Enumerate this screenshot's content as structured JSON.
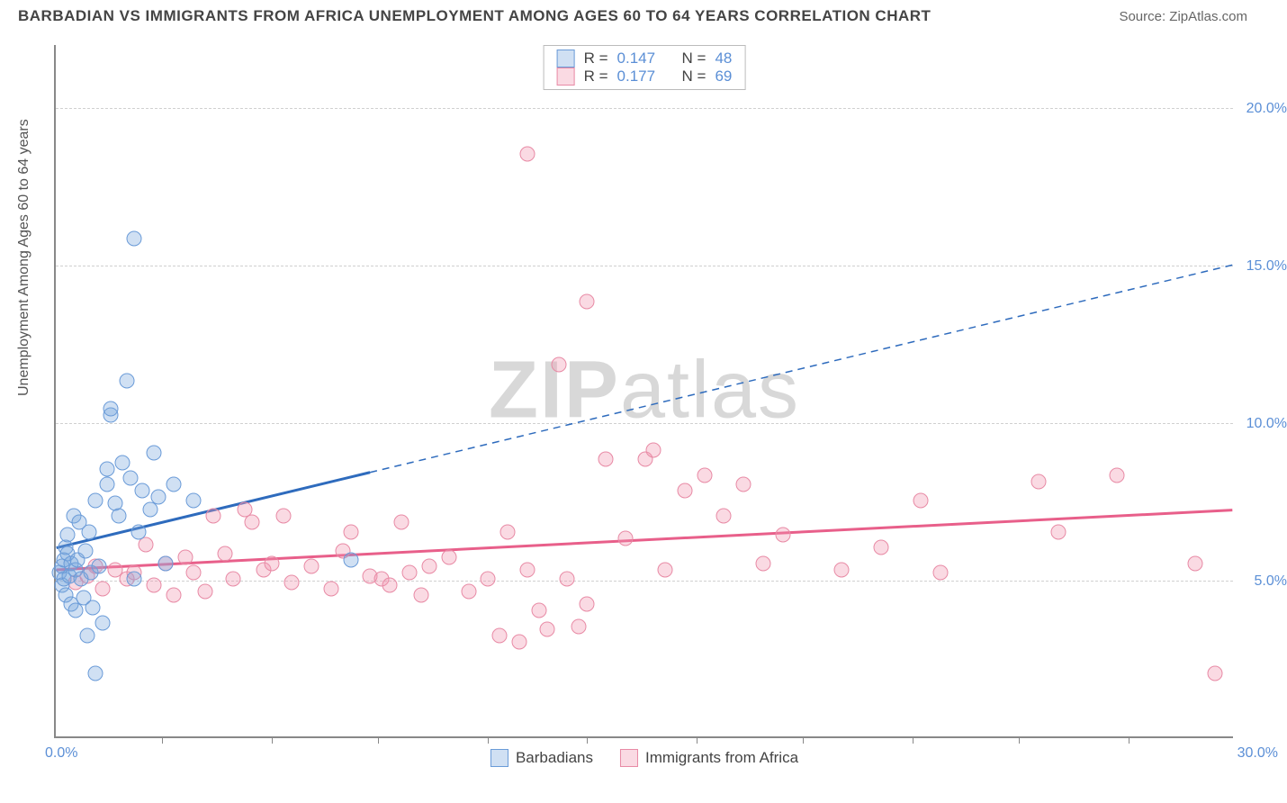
{
  "title": "BARBADIAN VS IMMIGRANTS FROM AFRICA UNEMPLOYMENT AMONG AGES 60 TO 64 YEARS CORRELATION CHART",
  "source": "Source: ZipAtlas.com",
  "ylabel": "Unemployment Among Ages 60 to 64 years",
  "watermark_zip": "ZIP",
  "watermark_atlas": "atlas",
  "chart": {
    "type": "scatter",
    "xlim": [
      0,
      30
    ],
    "ylim": [
      0,
      22
    ],
    "x_origin_label": "0.0%",
    "x_max_label": "30.0%",
    "y_ticks": [
      {
        "value": 5.0,
        "label": "5.0%"
      },
      {
        "value": 10.0,
        "label": "10.0%"
      },
      {
        "value": 15.0,
        "label": "15.0%"
      },
      {
        "value": 20.0,
        "label": "20.0%"
      }
    ],
    "x_tick_positions": [
      2.7,
      5.5,
      8.2,
      11.0,
      13.5,
      16.3,
      19.0,
      21.8,
      24.5,
      27.3
    ],
    "background_color": "#ffffff",
    "grid_color": "#d0d0d0",
    "axis_color": "#888888",
    "tick_label_color": "#5b8fd6"
  },
  "series": {
    "barbadians": {
      "label": "Barbadians",
      "fill": "rgba(120,165,220,0.35)",
      "stroke": "#6a9bd8",
      "line_color": "#2e6bbd",
      "R": "0.147",
      "N": "48",
      "trend": {
        "x1": 0,
        "y1": 6.0,
        "x2": 8.0,
        "y2": 8.4,
        "x2_ext": 30,
        "y2_ext": 15.0
      },
      "points": [
        [
          0.1,
          5.2
        ],
        [
          0.15,
          5.4
        ],
        [
          0.15,
          4.8
        ],
        [
          0.2,
          5.0
        ],
        [
          0.2,
          5.6
        ],
        [
          0.25,
          6.0
        ],
        [
          0.25,
          4.5
        ],
        [
          0.3,
          5.8
        ],
        [
          0.3,
          6.4
        ],
        [
          0.35,
          5.1
        ],
        [
          0.4,
          4.2
        ],
        [
          0.4,
          5.5
        ],
        [
          0.45,
          7.0
        ],
        [
          0.5,
          5.3
        ],
        [
          0.5,
          4.0
        ],
        [
          0.55,
          5.6
        ],
        [
          0.6,
          6.8
        ],
        [
          0.65,
          5.0
        ],
        [
          0.7,
          4.4
        ],
        [
          0.75,
          5.9
        ],
        [
          0.8,
          3.2
        ],
        [
          0.85,
          6.5
        ],
        [
          0.9,
          5.2
        ],
        [
          0.95,
          4.1
        ],
        [
          1.0,
          2.0
        ],
        [
          1.0,
          7.5
        ],
        [
          1.1,
          5.4
        ],
        [
          1.2,
          3.6
        ],
        [
          1.3,
          8.5
        ],
        [
          1.3,
          8.0
        ],
        [
          1.4,
          10.2
        ],
        [
          1.4,
          10.4
        ],
        [
          1.5,
          7.4
        ],
        [
          1.6,
          7.0
        ],
        [
          1.7,
          8.7
        ],
        [
          1.8,
          11.3
        ],
        [
          1.9,
          8.2
        ],
        [
          2.0,
          5.0
        ],
        [
          2.0,
          15.8
        ],
        [
          2.1,
          6.5
        ],
        [
          2.2,
          7.8
        ],
        [
          2.4,
          7.2
        ],
        [
          2.5,
          9.0
        ],
        [
          2.6,
          7.6
        ],
        [
          2.8,
          5.5
        ],
        [
          3.0,
          8.0
        ],
        [
          3.5,
          7.5
        ],
        [
          7.5,
          5.6
        ]
      ]
    },
    "africa": {
      "label": "Immigrants from Africa",
      "fill": "rgba(240,150,175,0.35)",
      "stroke": "#e88aa5",
      "line_color": "#e85f8a",
      "R": "0.177",
      "N": "69",
      "trend": {
        "x1": 0,
        "y1": 5.3,
        "x2": 30,
        "y2": 7.2
      },
      "points": [
        [
          0.5,
          4.9
        ],
        [
          0.8,
          5.1
        ],
        [
          1.0,
          5.4
        ],
        [
          1.2,
          4.7
        ],
        [
          1.5,
          5.3
        ],
        [
          1.8,
          5.0
        ],
        [
          2.0,
          5.2
        ],
        [
          2.3,
          6.1
        ],
        [
          2.5,
          4.8
        ],
        [
          2.8,
          5.5
        ],
        [
          3.0,
          4.5
        ],
        [
          3.3,
          5.7
        ],
        [
          3.5,
          5.2
        ],
        [
          3.8,
          4.6
        ],
        [
          4.0,
          7.0
        ],
        [
          4.3,
          5.8
        ],
        [
          4.5,
          5.0
        ],
        [
          4.8,
          7.2
        ],
        [
          5.0,
          6.8
        ],
        [
          5.3,
          5.3
        ],
        [
          5.5,
          5.5
        ],
        [
          5.8,
          7.0
        ],
        [
          6.0,
          4.9
        ],
        [
          6.5,
          5.4
        ],
        [
          7.0,
          4.7
        ],
        [
          7.3,
          5.9
        ],
        [
          7.5,
          6.5
        ],
        [
          8.0,
          5.1
        ],
        [
          8.3,
          5.0
        ],
        [
          8.5,
          4.8
        ],
        [
          8.8,
          6.8
        ],
        [
          9.0,
          5.2
        ],
        [
          9.3,
          4.5
        ],
        [
          9.5,
          5.4
        ],
        [
          10.0,
          5.7
        ],
        [
          10.5,
          4.6
        ],
        [
          11.0,
          5.0
        ],
        [
          11.3,
          3.2
        ],
        [
          11.5,
          6.5
        ],
        [
          11.8,
          3.0
        ],
        [
          12.0,
          5.3
        ],
        [
          12.0,
          18.5
        ],
        [
          12.3,
          4.0
        ],
        [
          12.5,
          3.4
        ],
        [
          12.8,
          11.8
        ],
        [
          13.0,
          5.0
        ],
        [
          13.3,
          3.5
        ],
        [
          13.5,
          4.2
        ],
        [
          13.5,
          13.8
        ],
        [
          14.0,
          8.8
        ],
        [
          14.5,
          6.3
        ],
        [
          15.0,
          8.8
        ],
        [
          15.2,
          9.1
        ],
        [
          15.5,
          5.3
        ],
        [
          16.0,
          7.8
        ],
        [
          16.5,
          8.3
        ],
        [
          17.0,
          7.0
        ],
        [
          17.5,
          8.0
        ],
        [
          18.0,
          5.5
        ],
        [
          18.5,
          6.4
        ],
        [
          20.0,
          5.3
        ],
        [
          21.0,
          6.0
        ],
        [
          22.0,
          7.5
        ],
        [
          22.5,
          5.2
        ],
        [
          25.0,
          8.1
        ],
        [
          25.5,
          6.5
        ],
        [
          27.0,
          8.3
        ],
        [
          29.0,
          5.5
        ],
        [
          29.5,
          2.0
        ]
      ]
    }
  },
  "stats_box": {
    "R_label": "R =",
    "N_label": "N ="
  }
}
